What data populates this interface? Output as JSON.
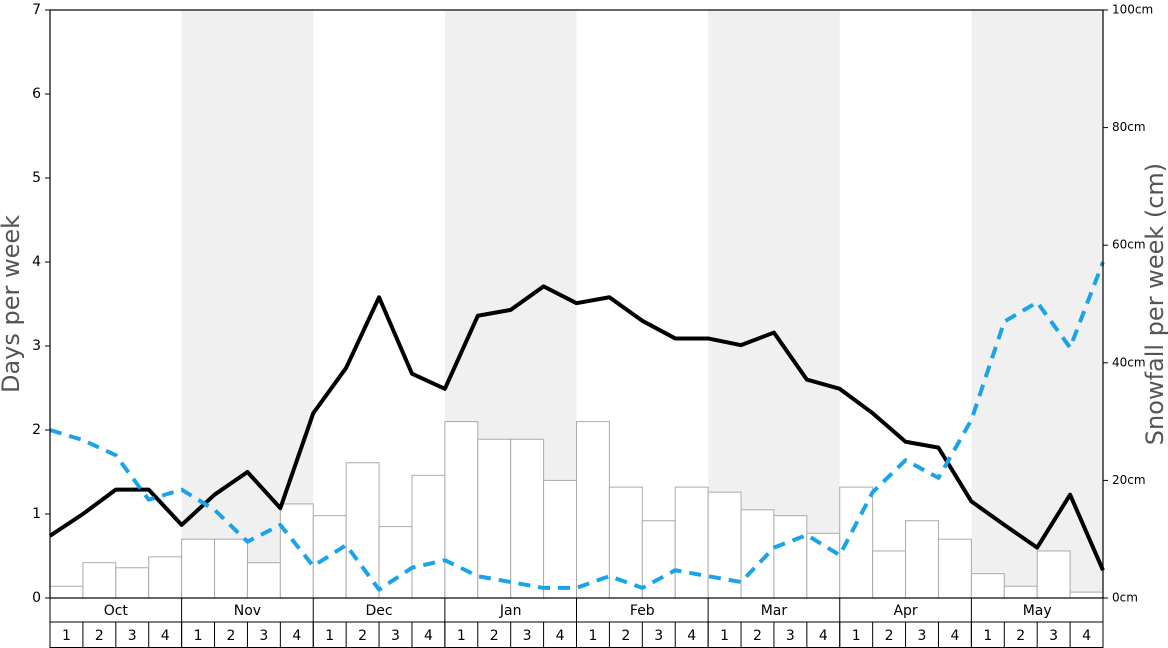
{
  "chart_data": {
    "type": "bar",
    "y_label": "Days per week",
    "y2_label": "Snowfall per week (cm)",
    "months": [
      "Oct",
      "Nov",
      "Dec",
      "Jan",
      "Feb",
      "Mar",
      "Apr",
      "May"
    ],
    "categories": [
      "1",
      "2",
      "3",
      "4",
      "1",
      "2",
      "3",
      "4",
      "1",
      "2",
      "3",
      "4",
      "1",
      "2",
      "3",
      "4",
      "1",
      "2",
      "3",
      "4",
      "1",
      "2",
      "3",
      "4",
      "1",
      "2",
      "3",
      "4",
      "1",
      "2",
      "3",
      "4"
    ],
    "values": [
      0.14,
      0.42,
      0.36,
      0.49,
      0.7,
      0.7,
      0.42,
      1.12,
      0.98,
      1.61,
      0.85,
      1.46,
      2.1,
      1.89,
      1.89,
      1.4,
      2.1,
      1.32,
      0.92,
      1.32,
      1.26,
      1.05,
      0.98,
      0.77,
      1.32,
      0.56,
      0.92,
      0.7,
      0.29,
      0.14,
      0.56,
      0.07
    ],
    "color": "#ffffff",
    "bar_edge": "#aaaaaa",
    "band_color": "#f0f0f0",
    "x": [
      0,
      1,
      2,
      3,
      4,
      5,
      6,
      7,
      8,
      9,
      10,
      11,
      12,
      13,
      14,
      15,
      16,
      17,
      18,
      19,
      20,
      21,
      22,
      23,
      24,
      25,
      26,
      27,
      28,
      29,
      30,
      31,
      32
    ],
    "xlim": [
      0,
      32
    ],
    "series": [
      {
        "color": "#000000",
        "dashed": false,
        "values": [
          0.74,
          1.0,
          1.29,
          1.29,
          0.87,
          1.23,
          1.5,
          1.07,
          2.2,
          2.74,
          3.58,
          2.67,
          2.49,
          3.36,
          3.43,
          3.71,
          3.51,
          3.58,
          3.3,
          3.09,
          3.09,
          3.01,
          3.16,
          2.6,
          2.49,
          2.2,
          1.86,
          1.79,
          1.15,
          0.87,
          0.6,
          1.23,
          0.33
        ]
      },
      {
        "color": "#1aa3e8",
        "dashed": true,
        "values": [
          2.0,
          1.88,
          1.7,
          1.17,
          1.29,
          1.05,
          0.67,
          0.87,
          0.38,
          0.63,
          0.1,
          0.36,
          0.45,
          0.26,
          0.19,
          0.12,
          0.12,
          0.26,
          0.12,
          0.33,
          0.26,
          0.19,
          0.6,
          0.75,
          0.51,
          1.26,
          1.64,
          1.43,
          2.12,
          3.29,
          3.52,
          2.98,
          4.0
        ]
      }
    ],
    "ylim": [
      0,
      7
    ],
    "yticks": [
      0,
      1,
      2,
      3,
      4,
      5,
      6,
      7
    ],
    "y2lim": [
      0,
      100
    ],
    "y2ticks": [
      {
        "value": 0,
        "label": "0cm"
      },
      {
        "value": 20,
        "label": "20cm"
      },
      {
        "value": 40,
        "label": "40cm"
      },
      {
        "value": 60,
        "label": "60cm"
      },
      {
        "value": 80,
        "label": "80cm"
      },
      {
        "value": 100,
        "label": "100cm"
      }
    ]
  }
}
